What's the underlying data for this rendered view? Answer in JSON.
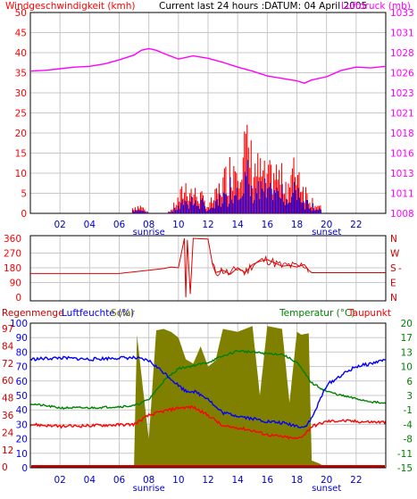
{
  "header": {
    "left_title": "Windgeschwindigkeit (kmh)",
    "center_title": "Current last 24 hours :DATUM: 04 April 2005",
    "right_title": "Luftdruck (mb)"
  },
  "x_axis": {
    "hour_ticks": [
      "02",
      "04",
      "06",
      "08",
      "10",
      "12",
      "14",
      "16",
      "18",
      "20",
      "22"
    ],
    "sunrise_label": "sunrise",
    "sunset_label": "sunset",
    "sunrise_hour": 8,
    "sunset_hour": 20
  },
  "panel_wind": {
    "left_ticks": [
      "50",
      "45",
      "40",
      "35",
      "30",
      "25",
      "20",
      "15",
      "10",
      "5",
      "0"
    ],
    "right_ticks": [
      "1033",
      "1031",
      "1028",
      "1026",
      "1023",
      "1021",
      "1018",
      "1016",
      "1013",
      "1011",
      "1008"
    ]
  },
  "panel_direction": {
    "left_ticks": [
      "360",
      "270",
      "180",
      "90",
      "0"
    ],
    "right_labels": [
      "N",
      "W",
      "S",
      "E",
      "N"
    ],
    "right_dash": "-"
  },
  "panel_weather": {
    "title_regen": "Regenmenge",
    "title_humidity": "Luftfeuchte (%)",
    "title_solar": "Solar",
    "title_temp": "Temperatur (°C)",
    "title_dew": "Taupunkt",
    "left_ticks_humidity": [
      "100",
      "90",
      "80",
      "70",
      "60",
      "50",
      "40",
      "30",
      "20",
      "10",
      "0"
    ],
    "left_ticks_rain": [
      "97",
      "84",
      "72",
      "60",
      "48",
      "36",
      "24",
      "12",
      "0"
    ],
    "right_ticks": [
      "20",
      "17",
      "13",
      "10",
      "6",
      "3",
      "-1",
      "-4",
      "-8",
      "-11",
      "-15"
    ]
  },
  "colors": {
    "wind_gust": "#ff0000",
    "wind_avg": "#0000ff",
    "pressure": "#ff00ff",
    "direction": "#dd0000",
    "humidity": "#0000ff",
    "temperature": "#008000",
    "dewpoint": "#ff0000",
    "solar": "#808000",
    "rain": "#cc0000",
    "grid": "#c8c8c8",
    "frame": "#000000"
  },
  "chart_data": [
    {
      "type": "line",
      "title": "Windgeschwindigkeit (kmh) / Luftdruck (mb)",
      "ylim": [
        0,
        50
      ],
      "y2lim": [
        1008,
        1033
      ],
      "series": [
        {
          "name": "Windgeschwindigkeit (kmh)",
          "axis": "left",
          "x": [
            0,
            1,
            2,
            3,
            4,
            5,
            6,
            6.5,
            7,
            7.5,
            8,
            8.5,
            9,
            9.5,
            10,
            10.5,
            11,
            11.5,
            12,
            12.5,
            13,
            13.5,
            14,
            14.5,
            15,
            15.5,
            16,
            16.5,
            17,
            17.5,
            18,
            18.5,
            19,
            19.5,
            20,
            21,
            22,
            23,
            24
          ],
          "values": [
            0,
            0,
            0,
            0,
            0,
            0,
            0,
            0,
            2,
            2,
            0,
            0,
            0,
            1,
            4,
            8,
            6,
            5,
            2,
            5,
            9,
            13,
            17,
            20,
            15,
            12,
            10,
            12,
            10,
            9,
            14,
            7,
            4,
            2,
            0,
            0,
            0,
            0,
            0
          ]
        },
        {
          "name": "Luftdruck (mb)",
          "axis": "right",
          "x": [
            0,
            1,
            2,
            3,
            4,
            5,
            6,
            7,
            7.5,
            8,
            8.5,
            9,
            10,
            11,
            12,
            13,
            14,
            15,
            16,
            17,
            18,
            18.5,
            19,
            20,
            21,
            22,
            23,
            24
          ],
          "values": [
            1025.7,
            1025.8,
            1026.0,
            1026.2,
            1026.3,
            1026.6,
            1027.1,
            1027.7,
            1028.3,
            1028.5,
            1028.3,
            1027.9,
            1027.2,
            1027.6,
            1027.3,
            1026.8,
            1026.2,
            1025.7,
            1025.1,
            1024.8,
            1024.5,
            1024.2,
            1024.6,
            1025.0,
            1025.8,
            1026.2,
            1026.1,
            1026.3
          ]
        }
      ]
    },
    {
      "type": "line",
      "title": "Windrichtung",
      "ylim": [
        0,
        360
      ],
      "series": [
        {
          "name": "Windrichtung",
          "x": [
            0,
            6,
            9,
            9.5,
            10,
            10.4,
            10.5,
            10.6,
            10.8,
            11.0,
            12.0,
            12.3,
            12.5,
            13.0,
            13.5,
            14.0,
            14.5,
            15.0,
            15.5,
            16.0,
            16.5,
            17.0,
            17.5,
            18.0,
            18.5,
            18.8,
            19.0,
            20,
            24
          ],
          "values": [
            145,
            145,
            175,
            185,
            180,
            360,
            0,
            350,
            20,
            360,
            355,
            200,
            150,
            165,
            140,
            180,
            150,
            200,
            220,
            230,
            210,
            190,
            195,
            185,
            200,
            165,
            150,
            150,
            150
          ]
        }
      ]
    },
    {
      "type": "line",
      "title": "Regenmenge / Luftfeuchte (%) / Solar / Temperatur (°C) / Taupunkt",
      "ylim": [
        0,
        100
      ],
      "y2lim": [
        -15,
        20
      ],
      "series": [
        {
          "name": "Luftfeuchte (%)",
          "axis": "left",
          "x": [
            0,
            2,
            4,
            6,
            7,
            8,
            9,
            10,
            10.5,
            11,
            12,
            12.5,
            13,
            14,
            15,
            16,
            17,
            18,
            18.5,
            19,
            20,
            21,
            22,
            23,
            24
          ],
          "values": [
            75,
            76,
            75,
            76,
            76,
            74,
            66,
            57,
            53,
            53,
            48,
            42,
            38,
            36,
            34,
            32,
            31,
            29,
            28,
            34,
            57,
            64,
            70,
            72,
            75
          ]
        },
        {
          "name": "Temperatur (°C)",
          "axis": "right",
          "x": [
            0,
            2,
            4,
            6,
            7,
            8,
            9,
            10,
            11,
            12,
            13,
            14,
            15,
            16,
            17,
            18,
            18.5,
            19,
            20,
            21,
            22,
            23,
            24
          ],
          "values": [
            0.5,
            -0.5,
            -0.5,
            -0.2,
            0,
            1.5,
            6,
            9,
            9.7,
            10.5,
            12,
            13.3,
            13.0,
            12.6,
            12.5,
            10.5,
            8,
            5.5,
            3.5,
            2.5,
            1.7,
            1.0,
            0.5
          ]
        },
        {
          "name": "Taupunkt",
          "axis": "right",
          "x": [
            0,
            2,
            4,
            6,
            7,
            8,
            9,
            10,
            11,
            12,
            12.5,
            13,
            14,
            15,
            16,
            17,
            18,
            18.5,
            19,
            20,
            21,
            22,
            23,
            24
          ],
          "values": [
            -4.5,
            -5,
            -4.8,
            -4.6,
            -4.5,
            -2.3,
            -1.3,
            -0.5,
            -0.3,
            -2.3,
            -3.5,
            -5,
            -5.3,
            -6,
            -7,
            -7.5,
            -8,
            -7,
            -5,
            -3.8,
            -3.6,
            -3.8,
            -3.9,
            -4
          ]
        },
        {
          "name": "Solar",
          "axis": "left",
          "x": [
            0,
            6.8,
            7,
            7.2,
            7.6,
            8,
            8.5,
            9,
            9.5,
            10,
            10.5,
            11,
            11.5,
            12,
            12.5,
            13,
            14,
            15,
            15.5,
            16,
            17,
            17.5,
            18,
            18.3,
            18.8,
            19,
            19.5,
            20,
            24
          ],
          "values": [
            0,
            0,
            1,
            92,
            55,
            20,
            95,
            96,
            94,
            90,
            75,
            72,
            84,
            70,
            74,
            96,
            94,
            98,
            50,
            98,
            96,
            45,
            94,
            92,
            93,
            5,
            3,
            0,
            0
          ]
        },
        {
          "name": "Regenmenge",
          "axis": "left",
          "x": [
            0,
            24
          ],
          "values": [
            0,
            0
          ]
        }
      ]
    }
  ]
}
